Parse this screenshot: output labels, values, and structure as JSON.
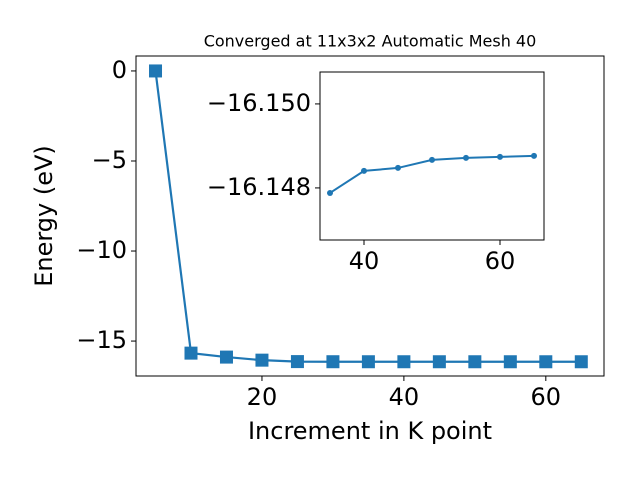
{
  "chart_data": [
    {
      "type": "line",
      "title": "Converged at 11x3x2 Automatic Mesh 40",
      "x_label": "Increment in K point",
      "y_label": "Energy (eV)",
      "marker": "square",
      "color": "#1f77b4",
      "x": [
        5,
        10,
        15,
        20,
        25,
        30,
        35,
        40,
        45,
        50,
        55,
        60,
        65
      ],
      "values": [
        0,
        -15.67,
        -15.89,
        -16.06,
        -16.14,
        -16.147,
        -16.14788,
        -16.148405,
        -16.148476,
        -16.148667,
        -16.148714,
        -16.148738,
        -16.148762
      ],
      "xlim": [
        2.25,
        68.2
      ],
      "ylim": [
        -16.94,
        0.83
      ],
      "xticks": [
        20,
        40,
        60
      ],
      "yticks": [
        0,
        {
          "value": -5,
          "label": "−5"
        },
        {
          "value": -10,
          "label": "−10"
        },
        {
          "value": -15,
          "label": "−15"
        }
      ]
    },
    {
      "type": "line",
      "marker": "circle",
      "color": "#1f77b4",
      "x": [
        35,
        40,
        45,
        50,
        55,
        60,
        65
      ],
      "values": [
        -16.14788,
        -16.148405,
        -16.148476,
        -16.148667,
        -16.148714,
        -16.148738,
        -16.148762
      ],
      "xlim": [
        33.53,
        66.47
      ],
      "ylim": [
        -16.14676,
        -16.15076
      ],
      "xticks": [
        40,
        60
      ],
      "yticks": [
        {
          "value": -16.15,
          "label": "−16.150"
        },
        {
          "value": -16.148,
          "label": "−16.148"
        }
      ]
    }
  ]
}
